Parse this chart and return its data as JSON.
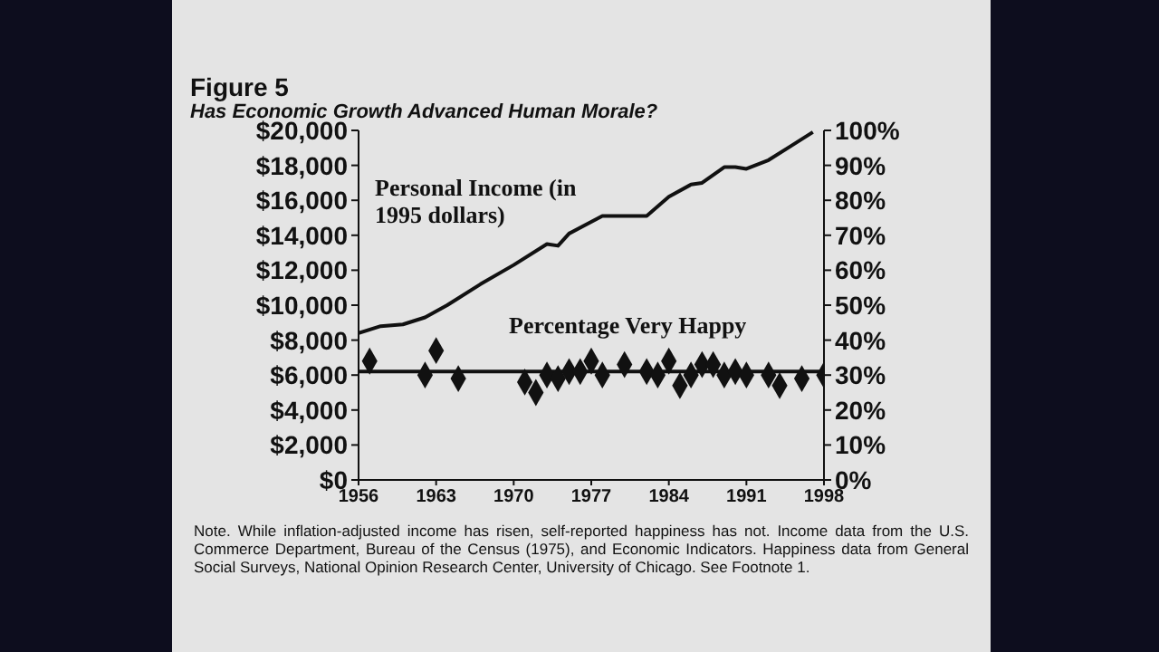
{
  "chart_data": {
    "type": "line",
    "title": "Figure 5",
    "subtitle": "Has Economic Growth Advanced Human Morale?",
    "xlim": [
      1956,
      1998
    ],
    "xticks": [
      1956,
      1963,
      1970,
      1977,
      1984,
      1991,
      1998
    ],
    "ylim": [
      0,
      20000
    ],
    "yticks": [
      {
        "value": 0,
        "label": "$0"
      },
      {
        "value": 2000,
        "label": "$2,000"
      },
      {
        "value": 4000,
        "label": "$4,000"
      },
      {
        "value": 6000,
        "label": "$6,000"
      },
      {
        "value": 8000,
        "label": "$8,000"
      },
      {
        "value": 10000,
        "label": "$10,000"
      },
      {
        "value": 12000,
        "label": "$12,000"
      },
      {
        "value": 14000,
        "label": "$14,000"
      },
      {
        "value": 16000,
        "label": "$16,000"
      },
      {
        "value": 18000,
        "label": "$18,000"
      },
      {
        "value": 20000,
        "label": "$20,000"
      }
    ],
    "y2lim": [
      0,
      100
    ],
    "y2ticks": [
      {
        "value": 0,
        "label": "0%"
      },
      {
        "value": 10,
        "label": "10%"
      },
      {
        "value": 20,
        "label": "20%"
      },
      {
        "value": 30,
        "label": "30%"
      },
      {
        "value": 40,
        "label": "40%"
      },
      {
        "value": 50,
        "label": "50%"
      },
      {
        "value": 60,
        "label": "60%"
      },
      {
        "value": 70,
        "label": "70%"
      },
      {
        "value": 80,
        "label": "80%"
      },
      {
        "value": 90,
        "label": "90%"
      },
      {
        "value": 100,
        "label": "100%"
      }
    ],
    "grid": false,
    "series": [
      {
        "name": "Personal Income (in 1995 dollars)",
        "type": "line",
        "color": "#111111",
        "marker": "none",
        "x": [
          1956,
          1958,
          1960,
          1962,
          1964,
          1967,
          1970,
          1973,
          1974,
          1975,
          1978,
          1982,
          1984,
          1986,
          1987,
          1989,
          1990,
          1991,
          1993,
          1995,
          1997
        ],
        "values": [
          8400,
          8800,
          8900,
          9300,
          10000,
          11200,
          12300,
          13500,
          13400,
          14100,
          15100,
          15100,
          16200,
          16900,
          17000,
          17900,
          17900,
          17800,
          18300,
          19100,
          19900
        ]
      },
      {
        "name": "Percentage Very Happy",
        "type": "scatter",
        "axis": "y2",
        "color": "#111111",
        "marker": "diamond",
        "x": [
          1957,
          1962,
          1963,
          1965,
          1971,
          1972,
          1973,
          1974,
          1975,
          1976,
          1977,
          1978,
          1980,
          1982,
          1983,
          1984,
          1985,
          1986,
          1987,
          1988,
          1989,
          1990,
          1991,
          1993,
          1994,
          1996,
          1998
        ],
        "values": [
          34,
          30,
          37,
          29,
          28,
          25,
          30,
          29,
          31,
          31,
          34,
          30,
          33,
          31,
          30,
          34,
          27,
          30,
          33,
          33,
          30,
          31,
          30,
          30,
          27,
          29,
          30
        ]
      },
      {
        "axis": "y2",
        "color": "#111111",
        "marker": "none",
        "x": [
          1956,
          1998
        ],
        "values": [
          31,
          31
        ]
      }
    ],
    "annotations": [
      "Note. While inflation-adjusted income has risen, self-reported happiness has not. Income data from the U.S. Commerce Department, Bureau of the Census (1975), and Economic Indicators. Happiness data from General Social Surveys, National Opinion Research Center, University of Chicago. See Footnote 1."
    ]
  }
}
